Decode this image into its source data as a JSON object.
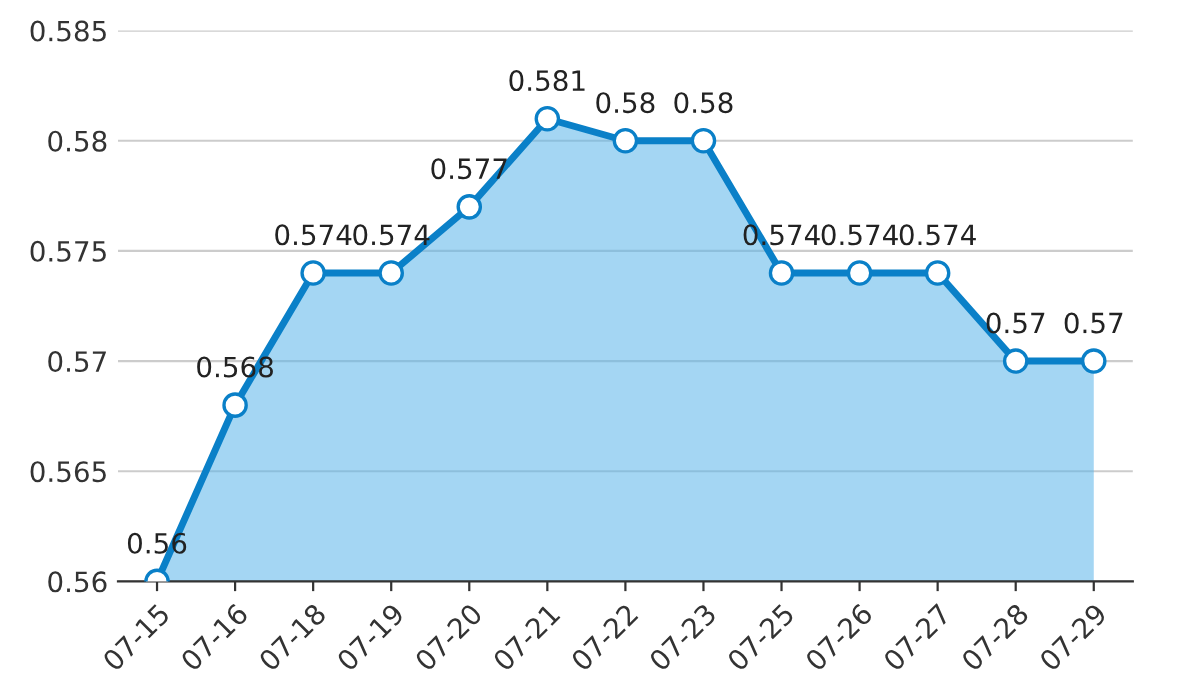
{
  "chart_data": {
    "type": "area",
    "categories": [
      "07-15",
      "07-16",
      "07-18",
      "07-19",
      "07-20",
      "07-21",
      "07-22",
      "07-23",
      "07-25",
      "07-26",
      "07-27",
      "07-28",
      "07-29"
    ],
    "series": [
      {
        "color": "#0a80c8",
        "values": [
          0.56,
          0.568,
          0.574,
          0.574,
          0.577,
          0.581,
          0.58,
          0.58,
          0.574,
          0.574,
          0.574,
          0.57,
          0.57
        ]
      }
    ],
    "ylim": [
      0.56,
      0.585
    ],
    "yticks": [
      0.56,
      0.565,
      0.57,
      0.575,
      0.58,
      0.585
    ],
    "grid": "y",
    "marker": "circle",
    "data_labels": true,
    "line_style": "solid"
  }
}
